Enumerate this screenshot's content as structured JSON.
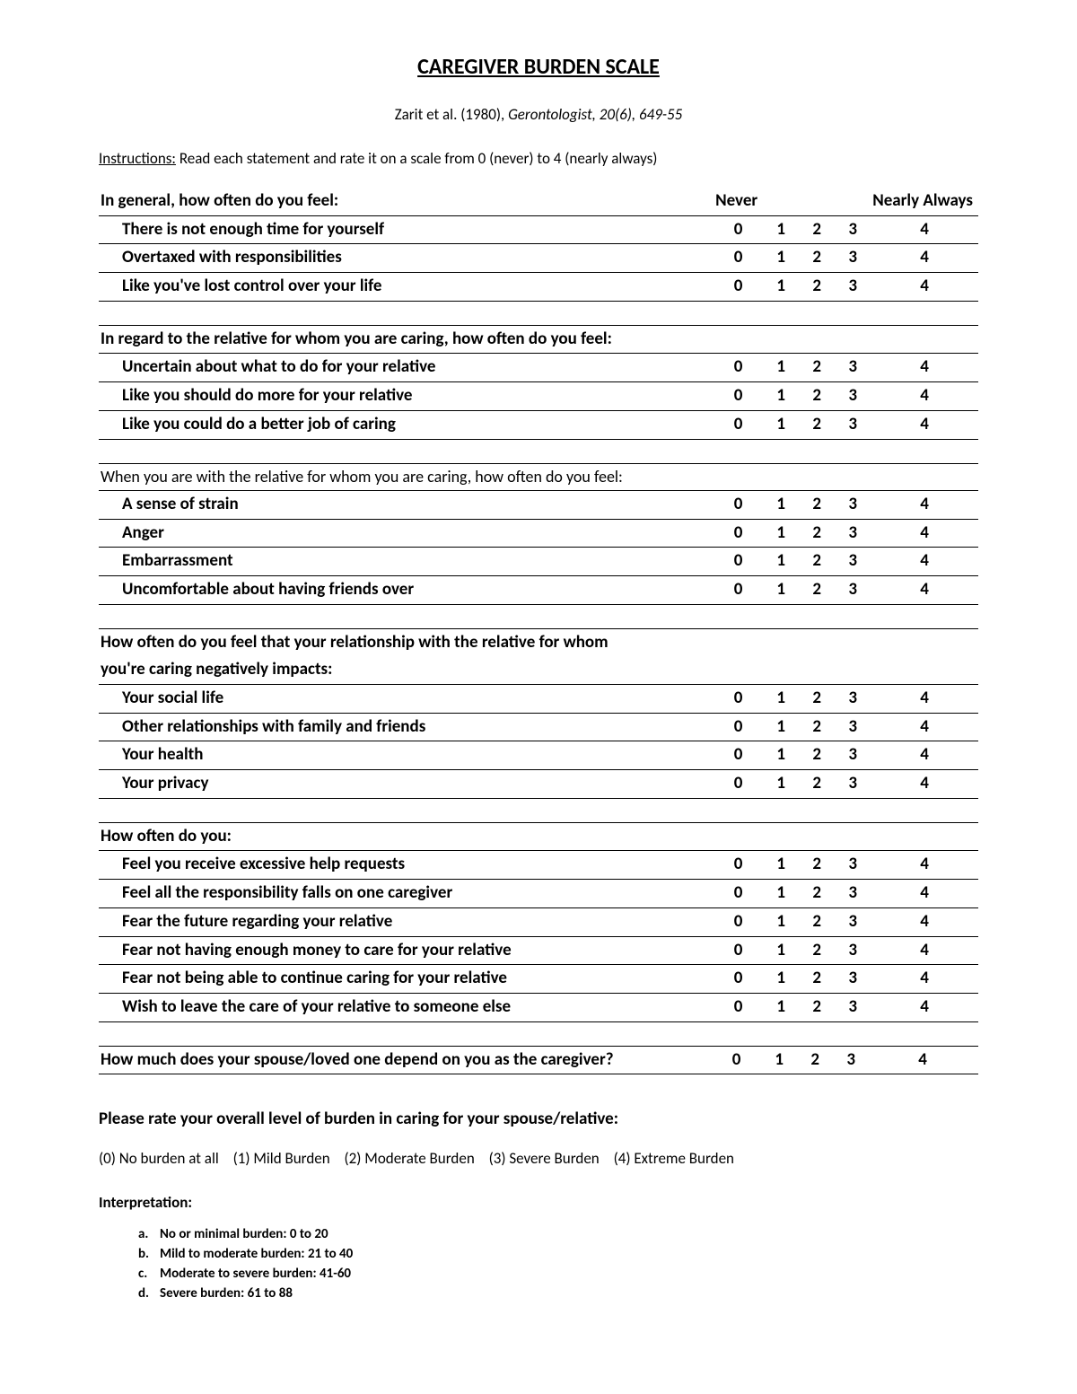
{
  "title": "CAREGIVER BURDEN SCALE",
  "citation_prefix": "Zarit et al. (1980), ",
  "citation_journal": "Gerontologist, 20(6), 649-55",
  "instructions_label": "Instructions:",
  "instructions_text": " Read each statement and rate it on a scale from  0 (never) to 4 (nearly always)",
  "header_prompt": "In general, how often do you feel:",
  "anchor_left": "Never",
  "anchor_right": "Nearly Always",
  "scale_values": [
    "0",
    "1",
    "2",
    "3",
    "4"
  ],
  "sections": [
    {
      "header": null,
      "header_style": "none",
      "items": [
        "There is not enough time for yourself",
        "Overtaxed with responsibilities",
        "Like you've lost control over your life"
      ]
    },
    {
      "header": "In regard to the relative for whom you are caring, how often do you feel:",
      "header_style": "bold",
      "items": [
        "Uncertain about what to do for your relative",
        "Like you should do more for your relative",
        "Like you could do a better job of caring"
      ]
    },
    {
      "header": "When you are with the relative for whom you are caring, how often do you feel:",
      "header_style": "normal",
      "items": [
        "A sense of strain",
        "Anger",
        "Embarrassment",
        "Uncomfortable about having friends over"
      ]
    },
    {
      "header": "How often do you feel that your relationship with the relative for whom you're caring negatively impacts:",
      "header_style": "bold-two-line",
      "items": [
        "Your social life",
        "Other relationships with family and friends",
        "Your health",
        "Your privacy"
      ]
    },
    {
      "header": "How often do you:",
      "header_style": "bold",
      "items": [
        "Feel you receive excessive help requests",
        "Feel all the responsibility falls on one caregiver",
        "Fear the future regarding your relative",
        "Fear not having enough money to care for your relative",
        "Fear not being able to continue caring for your relative",
        "Wish to leave the care of your relative to someone else"
      ]
    }
  ],
  "final_question": "How much does your spouse/loved one depend on you as the caregiver?",
  "overall_prompt": "Please rate your overall level of burden in caring for your spouse/relative:",
  "overall_options": [
    "(0) No burden at all",
    "(1) Mild Burden",
    "(2) Moderate Burden",
    "(3) Severe Burden",
    "(4) Extreme Burden"
  ],
  "interpretation_title": "Interpretation:",
  "interpretation": [
    {
      "letter": "a.",
      "text": "No or minimal burden: 0 to 20"
    },
    {
      "letter": "b.",
      "text": "Mild to moderate burden: 21 to 40"
    },
    {
      "letter": "c.",
      "text": "Moderate to severe burden: 41-60"
    },
    {
      "letter": "d.",
      "text": "Severe burden:  61 to 88"
    }
  ]
}
